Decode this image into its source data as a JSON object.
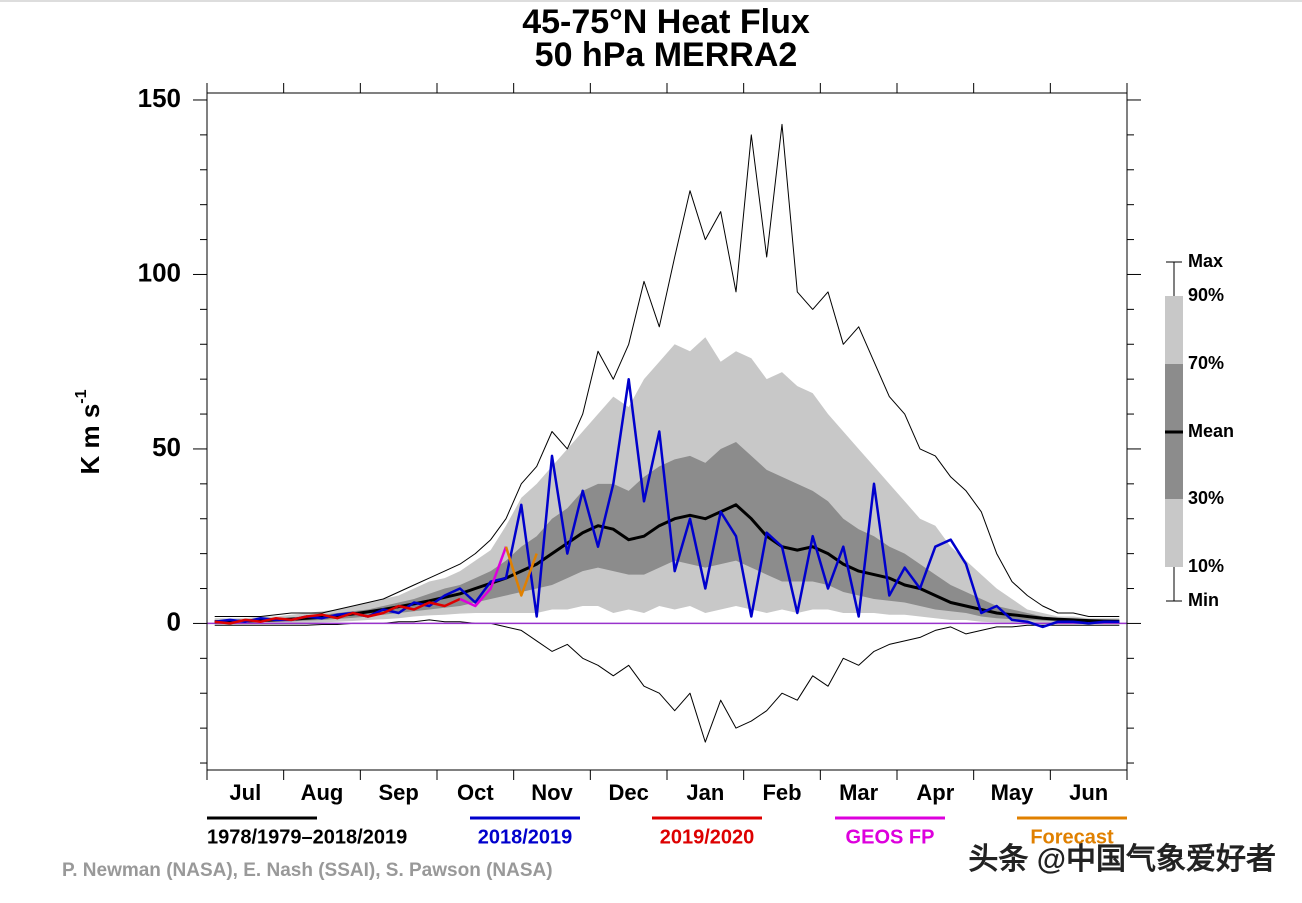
{
  "chart_data": {
    "type": "line",
    "title": "45-75°N Heat Flux",
    "subtitle": "50 hPa   MERRA2",
    "ylabel": "K m s",
    "ylabel_sup": "-1",
    "credit": "P. Newman (NASA), E. Nash (SSAI), S. Pawson (NASA)",
    "watermark": "头条 @中国气象爱好者",
    "categories": [
      null,
      null,
      "Jul",
      null,
      null,
      null,
      null,
      "Aug",
      null,
      null,
      null,
      null,
      "Sep",
      null,
      null,
      null,
      null,
      "Oct",
      null,
      null,
      null,
      null,
      "Nov",
      null,
      null,
      null,
      null,
      "Dec",
      null,
      null,
      null,
      null,
      "Jan",
      null,
      null,
      null,
      null,
      "Feb",
      null,
      null,
      null,
      null,
      "Mar",
      null,
      null,
      null,
      null,
      "Apr",
      null,
      null,
      null,
      null,
      "May",
      null,
      null,
      null,
      null,
      "Jun",
      null,
      null
    ],
    "ylim": [
      -42,
      152
    ],
    "yticks": [
      0,
      50,
      100,
      150
    ],
    "yminorticks": [
      -40,
      -30,
      -20,
      -10,
      10,
      20,
      30,
      40,
      60,
      70,
      80,
      90,
      110,
      120,
      130,
      140
    ],
    "zero_line_color": "#9933cc",
    "band_colors": [
      "#c8c8c8",
      "#8c8c8c"
    ],
    "mean_label": "Mean",
    "envelope": [
      {
        "name": "Max",
        "values": [
          2,
          2,
          2,
          2,
          2.5,
          3,
          3,
          3,
          4,
          5,
          6,
          7,
          9,
          11,
          13,
          15,
          17,
          20,
          24,
          30,
          40,
          45,
          55,
          50,
          60,
          78,
          70,
          80,
          98,
          85,
          105,
          124,
          110,
          118,
          95,
          140,
          105,
          143,
          95,
          90,
          95,
          80,
          85,
          75,
          65,
          60,
          50,
          48,
          42,
          38,
          32,
          20,
          12,
          8,
          5,
          3,
          3,
          2,
          2,
          2
        ]
      },
      {
        "name": "90%",
        "values": [
          1.5,
          1.5,
          1.5,
          2,
          2,
          2.5,
          3,
          3.5,
          4,
          5,
          6,
          7,
          8,
          10,
          12,
          13,
          15,
          18,
          21,
          28,
          36,
          40,
          45,
          50,
          55,
          60,
          65,
          62,
          70,
          75,
          80,
          78,
          82,
          75,
          78,
          76,
          70,
          72,
          68,
          66,
          60,
          55,
          50,
          45,
          40,
          35,
          30,
          28,
          22,
          18,
          14,
          10,
          7,
          4,
          3,
          2,
          2,
          1.5,
          1.5,
          1.5
        ]
      },
      {
        "name": "70%",
        "values": [
          1,
          1,
          1.2,
          1.2,
          1.5,
          1.8,
          2,
          2.5,
          3,
          3.5,
          4,
          5,
          6,
          7,
          8.5,
          10,
          11,
          13,
          15,
          18,
          22,
          25,
          30,
          33,
          38,
          40,
          40,
          38,
          42,
          45,
          47,
          48,
          46,
          50,
          52,
          48,
          44,
          42,
          40,
          38,
          35,
          30,
          27,
          25,
          22,
          20,
          17,
          14,
          11,
          9,
          7,
          5,
          4,
          3,
          2,
          1.5,
          1.2,
          1.2,
          1,
          1
        ]
      },
      {
        "name": "30%",
        "values": [
          0.2,
          0.3,
          0.3,
          0.4,
          0.5,
          0.6,
          0.8,
          1,
          1.3,
          1.6,
          2,
          2.5,
          3,
          3.5,
          4,
          4.5,
          5,
          6,
          7,
          8,
          9,
          10,
          11,
          13,
          15,
          16,
          15,
          14,
          14,
          16,
          18,
          17,
          16,
          17,
          18,
          16,
          14,
          12,
          12,
          12,
          11,
          9,
          8,
          7,
          6.5,
          6,
          5,
          4,
          3.5,
          3,
          2,
          1.5,
          1.2,
          1,
          0.8,
          0.6,
          0.5,
          0.4,
          0.3,
          0.3
        ]
      },
      {
        "name": "10%",
        "values": [
          0,
          0,
          0,
          0,
          0,
          0,
          0.2,
          0.3,
          0.5,
          0.7,
          1,
          1.2,
          1.5,
          2,
          2.3,
          2.5,
          2.8,
          3,
          3,
          3,
          3,
          3,
          4,
          4,
          5,
          5,
          3,
          4,
          3,
          5,
          4,
          5,
          3,
          4,
          5,
          4,
          3,
          4,
          3,
          4,
          4,
          3,
          3,
          3,
          2.5,
          2.5,
          2,
          1.5,
          1,
          1,
          0.5,
          0.3,
          0.2,
          0.2,
          0.2,
          0,
          0,
          0,
          0,
          0
        ]
      },
      {
        "name": "Min",
        "values": [
          -0.5,
          -0.5,
          -0.5,
          -0.5,
          -0.5,
          -0.5,
          -0.5,
          -0.3,
          -0.3,
          0,
          0,
          0,
          0.5,
          0.5,
          1,
          0.5,
          0.5,
          0,
          0,
          -1,
          -2,
          -5,
          -8,
          -6,
          -10,
          -12,
          -15,
          -12,
          -18,
          -20,
          -25,
          -20,
          -34,
          -22,
          -30,
          -28,
          -25,
          -20,
          -22,
          -15,
          -18,
          -10,
          -12,
          -8,
          -6,
          -5,
          -4,
          -2,
          -1,
          -3,
          -2,
          -1,
          -1,
          -0.5,
          -0.5,
          -0.5,
          -0.5,
          -0.5,
          -0.5,
          -0.5
        ]
      }
    ],
    "series": [
      {
        "name": "1978/1979–2018/2019",
        "color": "#000000",
        "values": [
          0.5,
          0.6,
          0.7,
          0.8,
          1,
          1.2,
          1.5,
          1.8,
          2.2,
          2.7,
          3.3,
          4,
          4.8,
          5.6,
          6.5,
          7.5,
          8.5,
          10,
          11.5,
          13,
          15,
          17,
          20,
          23,
          26,
          28,
          27,
          24,
          25,
          28,
          30,
          31,
          30,
          32,
          34,
          30,
          25,
          22,
          21,
          22,
          20,
          17,
          15,
          14,
          13,
          11,
          10,
          8,
          6,
          5,
          4,
          3,
          2.5,
          2,
          1.5,
          1.2,
          1,
          0.8,
          0.7,
          0.6
        ]
      },
      {
        "name": "2018/2019",
        "color": "#0000cc",
        "values": [
          0.5,
          1,
          0.5,
          1.5,
          1,
          1,
          2,
          1.5,
          2.5,
          3,
          2,
          4,
          3,
          6,
          5,
          8,
          10,
          6,
          12,
          13,
          34,
          2,
          48,
          20,
          38,
          22,
          40,
          70,
          35,
          55,
          15,
          30,
          10,
          32,
          25,
          2,
          26,
          22,
          3,
          25,
          10,
          22,
          2,
          40,
          8,
          16,
          10,
          22,
          24,
          17,
          3,
          5,
          1,
          0.5,
          -1,
          0.5,
          0.5,
          0,
          0.5,
          0.5
        ]
      },
      {
        "name": "2019/2020",
        "color": "#dd0000",
        "values": [
          0.5,
          0,
          1,
          0.5,
          1.5,
          1,
          2,
          2.5,
          1.5,
          3,
          2,
          3,
          5,
          4,
          6,
          5,
          7,
          null,
          null,
          null,
          null,
          null,
          null,
          null,
          null,
          null,
          null,
          null,
          null,
          null,
          null,
          null,
          null,
          null,
          null,
          null,
          null,
          null,
          null,
          null,
          null,
          null,
          null,
          null,
          null,
          null,
          null,
          null,
          null,
          null,
          null,
          null,
          null,
          null,
          null,
          null,
          null,
          null,
          null,
          null
        ]
      },
      {
        "name": "GEOS FP",
        "color": "#dd00dd",
        "values": [
          null,
          null,
          null,
          null,
          null,
          null,
          null,
          null,
          null,
          null,
          null,
          null,
          null,
          null,
          null,
          null,
          7,
          5,
          10,
          22,
          null,
          null,
          null,
          null,
          null,
          null,
          null,
          null,
          null,
          null,
          null,
          null,
          null,
          null,
          null,
          null,
          null,
          null,
          null,
          null,
          null,
          null,
          null,
          null,
          null,
          null,
          null,
          null,
          null,
          null,
          null,
          null,
          null,
          null,
          null,
          null,
          null,
          null,
          null,
          null
        ]
      },
      {
        "name": "Forecast",
        "color": "#e08000",
        "values": [
          null,
          null,
          null,
          null,
          null,
          null,
          null,
          null,
          null,
          null,
          null,
          null,
          null,
          null,
          null,
          null,
          null,
          null,
          null,
          22,
          8,
          20,
          null,
          null,
          null,
          null,
          null,
          null,
          null,
          null,
          null,
          null,
          null,
          null,
          null,
          null,
          null,
          null,
          null,
          null,
          null,
          null,
          null,
          null,
          null,
          null,
          null,
          null,
          null,
          null,
          null,
          null,
          null,
          null,
          null,
          null,
          null,
          null,
          null,
          null
        ]
      }
    ]
  }
}
